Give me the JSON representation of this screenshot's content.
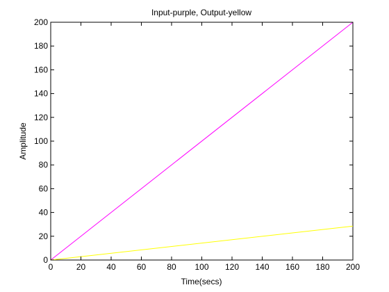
{
  "chart_data": {
    "type": "line",
    "title": "Input-purple, Output-yellow",
    "xlabel": "Time(secs)",
    "ylabel": "Amplitude",
    "xlim": [
      0,
      200
    ],
    "ylim": [
      0,
      200
    ],
    "xticks": [
      0,
      20,
      40,
      60,
      80,
      100,
      120,
      140,
      160,
      180,
      200
    ],
    "yticks": [
      0,
      20,
      40,
      60,
      80,
      100,
      120,
      140,
      160,
      180,
      200
    ],
    "grid": false,
    "series": [
      {
        "color": "#ff00ff",
        "x": [
          0,
          200
        ],
        "y": [
          0,
          200
        ]
      },
      {
        "color": "#ffff00",
        "x": [
          0,
          200
        ],
        "y": [
          0,
          28.5
        ]
      }
    ]
  }
}
